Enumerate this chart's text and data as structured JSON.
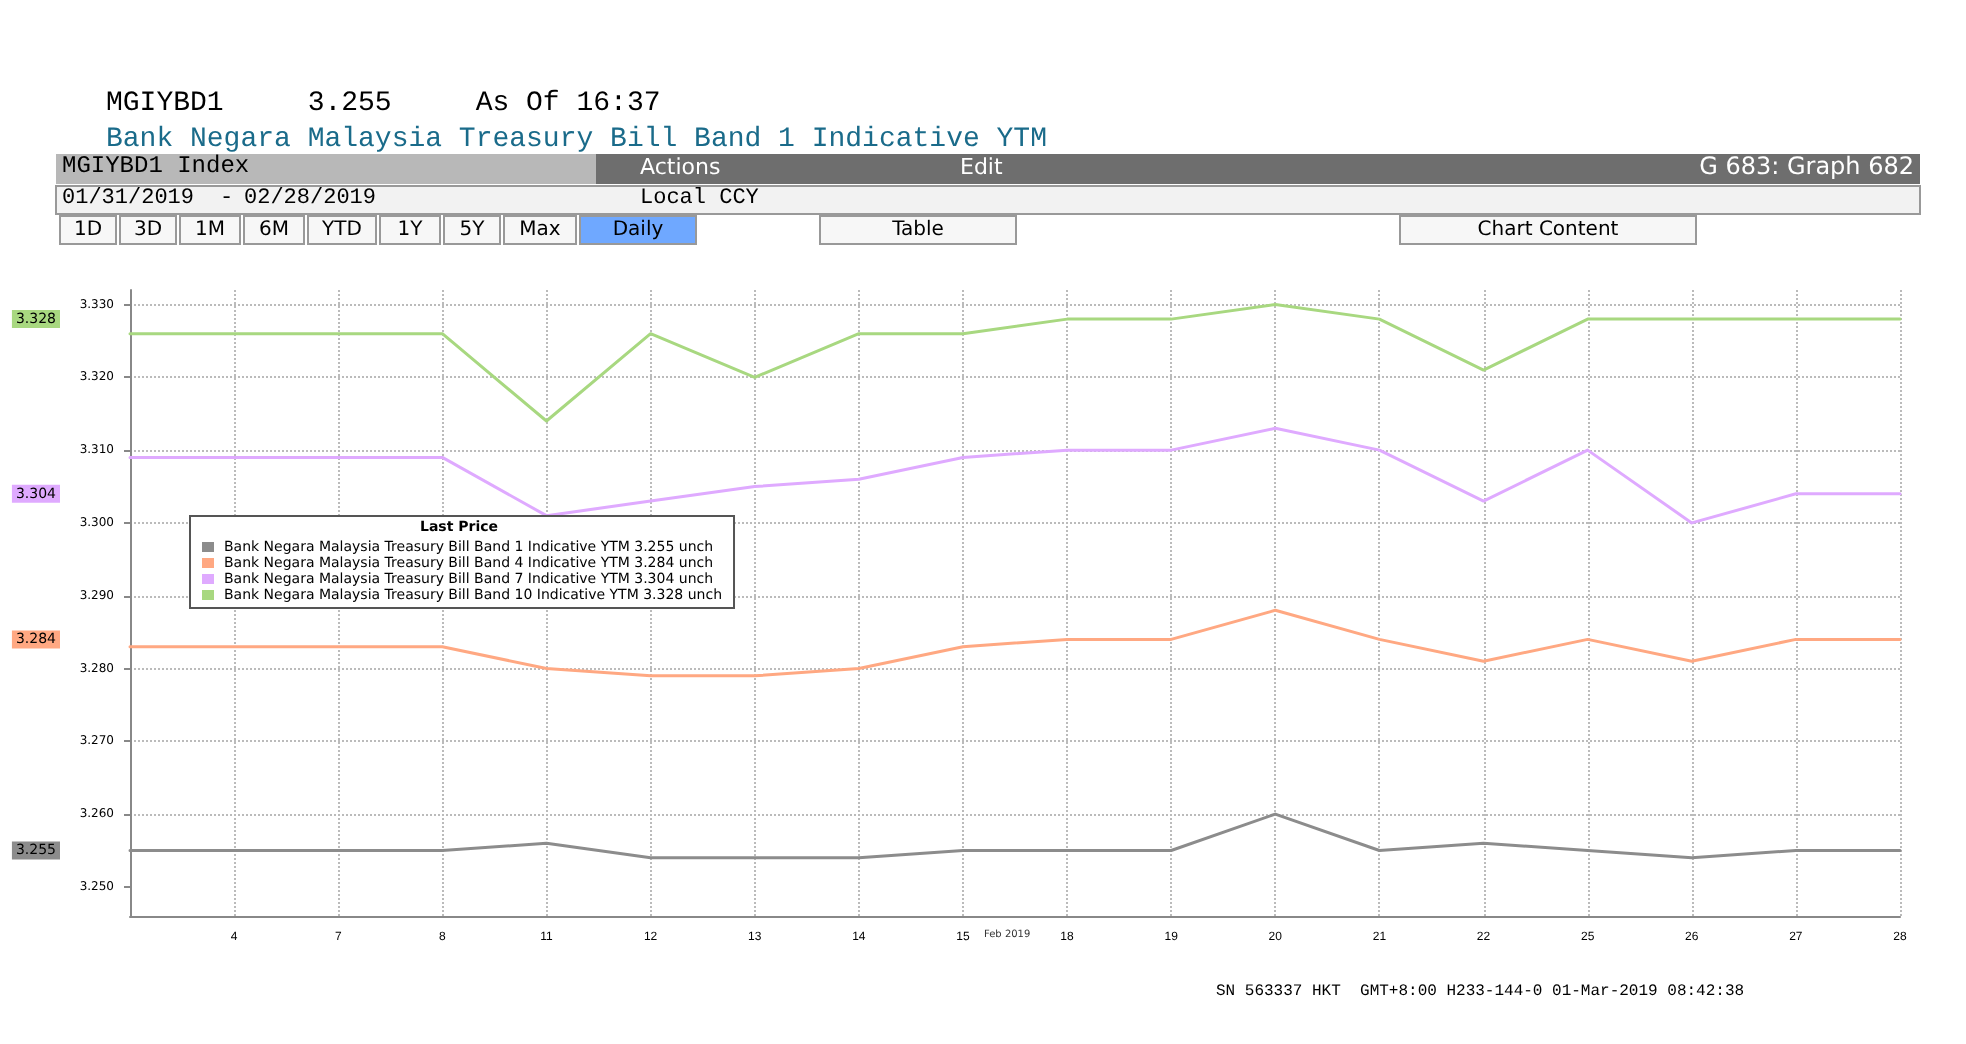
{
  "chart_data": {
    "type": "line",
    "title": "MGIYBD1     3.255     As Of 16:37",
    "subtitle": "Bank Negara Malaysia Treasury Bill Band 1 Indicative YTM",
    "legend_title": "Last Price",
    "categories": [
      null,
      "4",
      "7",
      "8",
      "11",
      "12",
      "13",
      "14",
      "15",
      "18",
      "19",
      "20",
      "21",
      "22",
      "25",
      "26",
      "27",
      "28"
    ],
    "series": [
      {
        "name": "Bank Negara Malaysia Treasury Bill Band 1 Indicative YTM 3.255 unch",
        "color": "#8c8c8c",
        "values": [
          3.255,
          3.255,
          3.255,
          3.255,
          3.256,
          3.254,
          3.254,
          3.254,
          3.255,
          3.255,
          3.255,
          3.26,
          3.255,
          3.256,
          3.255,
          3.254,
          3.255,
          3.255
        ]
      },
      {
        "name": "Bank Negara Malaysia Treasury Bill Band 4 Indicative YTM 3.284 unch",
        "color": "#ffa882",
        "values": [
          3.283,
          3.283,
          3.283,
          3.283,
          3.28,
          3.279,
          3.279,
          3.28,
          3.283,
          3.284,
          3.284,
          3.288,
          3.284,
          3.281,
          3.284,
          3.281,
          3.284,
          3.284
        ]
      },
      {
        "name": "Bank Negara Malaysia Treasury Bill Band 7 Indicative YTM 3.304 unch",
        "color": "#dfaaff",
        "values": [
          3.309,
          3.309,
          3.309,
          3.309,
          3.301,
          3.303,
          3.305,
          3.306,
          3.309,
          3.31,
          3.31,
          3.313,
          3.31,
          3.303,
          3.31,
          3.3,
          3.304,
          3.304
        ]
      },
      {
        "name": "Bank Negara Malaysia Treasury Bill Band 10 Indicative YTM 3.328 unch",
        "color": "#a8d880",
        "values": [
          3.326,
          3.326,
          3.326,
          3.326,
          3.314,
          3.326,
          3.32,
          3.326,
          3.326,
          3.328,
          3.328,
          3.33,
          3.328,
          3.321,
          3.328,
          3.328,
          3.328,
          3.328
        ]
      }
    ],
    "ylim": [
      3.246,
      3.332
    ],
    "yticks": [
      {
        "value": 3.25,
        "label": "3.250"
      },
      {
        "value": 3.26,
        "label": "3.260"
      },
      {
        "value": 3.27,
        "label": "3.270"
      },
      {
        "value": 3.28,
        "label": "3.280"
      },
      {
        "value": 3.29,
        "label": "3.290"
      },
      {
        "value": 3.3,
        "label": "3.300"
      },
      {
        "value": 3.31,
        "label": "3.310"
      },
      {
        "value": 3.32,
        "label": "3.320"
      },
      {
        "value": 3.33,
        "label": "3.330"
      }
    ],
    "grid": true,
    "legend": "left",
    "marker": "none",
    "line_style": "solid",
    "annotations": [
      "MGIYBD1 Index",
      "Actions",
      "Edit",
      "G 683: Graph 682",
      "01/31/2019",
      "-",
      "02/28/2019",
      "Local CCY",
      "1D",
      "3D",
      "1M",
      "6M",
      "YTD",
      "1Y",
      "5Y",
      "Max",
      "Daily",
      "Table",
      "Chart Content",
      "Feb 2019",
      "SN 563337 HKT  GMT+8:00 H233-144-0 01-Mar-2019 08:42:38",
      "3.255",
      "3.284",
      "3.304",
      "3.328"
    ]
  }
}
